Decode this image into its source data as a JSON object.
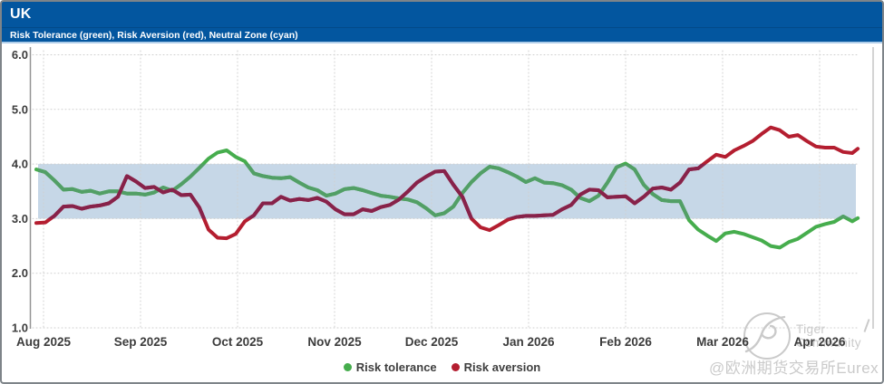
{
  "header": {
    "title": "UK",
    "subtitle": "Risk Tolerance (green), Risk Aversion (red), Neutral Zone (cyan)"
  },
  "colors": {
    "header_bg": "#03569f",
    "band": "#c6d7e7",
    "green": "#46ad4d",
    "green_in_band": "#529f66",
    "red": "#b41e30",
    "red_in_band": "#87224a",
    "grid": "#cfcfcf",
    "axis_text": "#3c3c3c",
    "watermark": "#cacaca",
    "frame": "#7e8489"
  },
  "legend": {
    "items": [
      {
        "label": "Risk tolerance",
        "color_key": "green"
      },
      {
        "label": "Risk aversion",
        "color_key": "red"
      }
    ]
  },
  "watermark": {
    "brand": "Tiger Community",
    "handle": "@欧洲期货交易所Eurex"
  },
  "chart_data": {
    "type": "line",
    "title": "UK",
    "subtitle": "Risk Tolerance (green), Risk Aversion (red), Neutral Zone (cyan)",
    "grid": "dotted",
    "legend_position": "bottom-center",
    "ylim": [
      1.0,
      6.0
    ],
    "y_ticks": [
      6,
      5,
      4,
      3,
      2,
      1
    ],
    "y_tick_labels": [
      "6.0",
      "5.0",
      "4.0",
      "3.0",
      "2.0",
      "1.0"
    ],
    "x_tick_labels": [
      "Aug 2025",
      "Sep 2025",
      "Oct 2025",
      "Nov 2025",
      "Dec 2025",
      "Jan 2026",
      "Feb 2026",
      "Mar 2026",
      "Apr 2026"
    ],
    "x_unit": "months since Aug 2025 tick",
    "neutral_zone": [
      3.0,
      4.0
    ],
    "x": [
      -0.075,
      0.019,
      0.112,
      0.206,
      0.299,
      0.393,
      0.486,
      0.579,
      0.673,
      0.766,
      0.86,
      0.953,
      1.047,
      1.14,
      1.234,
      1.327,
      1.421,
      1.514,
      1.607,
      1.701,
      1.794,
      1.888,
      1.981,
      2.075,
      2.168,
      2.262,
      2.355,
      2.449,
      2.542,
      2.636,
      2.729,
      2.822,
      2.916,
      3.009,
      3.103,
      3.196,
      3.29,
      3.383,
      3.477,
      3.57,
      3.664,
      3.757,
      3.85,
      3.944,
      4.037,
      4.131,
      4.224,
      4.318,
      4.411,
      4.505,
      4.598,
      4.692,
      4.785,
      4.879,
      4.972,
      5.065,
      5.159,
      5.252,
      5.346,
      5.439,
      5.533,
      5.626,
      5.72,
      5.813,
      5.907,
      6.0,
      6.093,
      6.187,
      6.28,
      6.374,
      6.467,
      6.561,
      6.654,
      6.748,
      6.841,
      6.935,
      7.028,
      7.121,
      7.215,
      7.308,
      7.402,
      7.495,
      7.589,
      7.682,
      7.776,
      7.869,
      7.963,
      8.056,
      8.15,
      8.243,
      8.336,
      8.393
    ],
    "series": [
      {
        "name": "Risk tolerance",
        "color_key": "green",
        "values": [
          3.9,
          3.85,
          3.7,
          3.53,
          3.54,
          3.49,
          3.51,
          3.46,
          3.5,
          3.5,
          3.46,
          3.46,
          3.44,
          3.48,
          3.57,
          3.51,
          3.63,
          3.77,
          3.93,
          4.1,
          4.21,
          4.25,
          4.13,
          4.05,
          3.83,
          3.78,
          3.75,
          3.74,
          3.76,
          3.66,
          3.57,
          3.52,
          3.42,
          3.46,
          3.54,
          3.56,
          3.52,
          3.47,
          3.42,
          3.4,
          3.37,
          3.35,
          3.3,
          3.19,
          3.06,
          3.1,
          3.22,
          3.47,
          3.67,
          3.83,
          3.95,
          3.92,
          3.85,
          3.77,
          3.67,
          3.74,
          3.66,
          3.65,
          3.61,
          3.53,
          3.38,
          3.32,
          3.42,
          3.66,
          3.94,
          4.01,
          3.9,
          3.62,
          3.45,
          3.34,
          3.32,
          3.32,
          2.97,
          2.8,
          2.69,
          2.59,
          2.73,
          2.76,
          2.72,
          2.66,
          2.6,
          2.5,
          2.47,
          2.57,
          2.63,
          2.74,
          2.85,
          2.9,
          2.94,
          3.04,
          2.95,
          3.01
        ]
      },
      {
        "name": "Risk aversion",
        "color_key": "red",
        "values": [
          2.92,
          2.93,
          3.05,
          3.22,
          3.23,
          3.18,
          3.22,
          3.24,
          3.28,
          3.4,
          3.78,
          3.68,
          3.56,
          3.58,
          3.48,
          3.53,
          3.43,
          3.44,
          3.2,
          2.8,
          2.65,
          2.64,
          2.72,
          2.95,
          3.06,
          3.28,
          3.28,
          3.4,
          3.33,
          3.36,
          3.34,
          3.38,
          3.31,
          3.17,
          3.08,
          3.08,
          3.17,
          3.14,
          3.21,
          3.25,
          3.35,
          3.5,
          3.66,
          3.77,
          3.86,
          3.87,
          3.62,
          3.4,
          3.0,
          2.84,
          2.79,
          2.88,
          2.98,
          3.03,
          3.05,
          3.05,
          3.06,
          3.07,
          3.17,
          3.25,
          3.44,
          3.53,
          3.52,
          3.39,
          3.4,
          3.41,
          3.28,
          3.4,
          3.55,
          3.57,
          3.53,
          3.66,
          3.9,
          3.92,
          4.05,
          4.17,
          4.13,
          4.25,
          4.33,
          4.42,
          4.55,
          4.67,
          4.62,
          4.5,
          4.53,
          4.42,
          4.32,
          4.3,
          4.3,
          4.22,
          4.2,
          4.28
        ]
      }
    ]
  }
}
